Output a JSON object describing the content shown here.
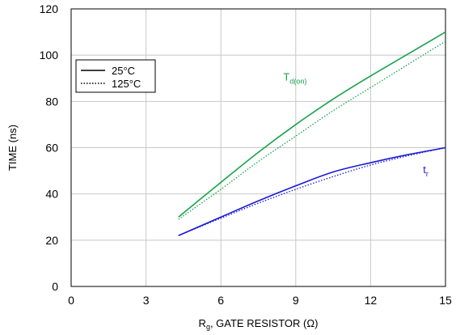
{
  "chart_data": {
    "type": "line",
    "xlabel_main": "R",
    "xlabel_sub": "g",
    "xlabel_rest": ", GATE RESISTOR (Ω)",
    "ylabel": "TIME (ns)",
    "xlim": [
      0,
      15
    ],
    "ylim": [
      0,
      120
    ],
    "x_ticks": [
      0,
      3,
      6,
      9,
      12,
      15
    ],
    "y_ticks": [
      0,
      20,
      40,
      60,
      80,
      100,
      120
    ],
    "grid": true,
    "legend": {
      "placement": "top-left",
      "entries": [
        {
          "label": "25°C",
          "style": "solid"
        },
        {
          "label": "125°C",
          "style": "dotted"
        }
      ]
    },
    "annotations": [
      {
        "main": "T",
        "sub": "d(on)",
        "color": "#17a34a",
        "x": 8.5,
        "y": 89
      },
      {
        "main": "t",
        "sub": "r",
        "color": "#1a1ad6",
        "x": 14.1,
        "y": 49
      }
    ],
    "series": [
      {
        "group": "Td(on)",
        "temp": "25°C",
        "style": "solid",
        "color": "#17a34a",
        "x": [
          4.3,
          6,
          7.5,
          9,
          10.5,
          12,
          13.5,
          15
        ],
        "y": [
          30,
          45,
          58,
          70,
          81,
          91,
          100.5,
          110
        ]
      },
      {
        "group": "Td(on)",
        "temp": "125°C",
        "style": "dotted",
        "color": "#17a34a",
        "x": [
          4.3,
          6,
          7.5,
          9,
          10.5,
          12,
          13.5,
          15
        ],
        "y": [
          29,
          42,
          54,
          65,
          76,
          86,
          96,
          106
        ]
      },
      {
        "group": "tr",
        "temp": "25°C",
        "style": "solid",
        "color": "#1a1ad6",
        "x": [
          4.3,
          6,
          7.5,
          9,
          10.5,
          12,
          13.5,
          15
        ],
        "y": [
          22,
          30,
          37,
          43.5,
          49.5,
          53.5,
          57,
          60
        ]
      },
      {
        "group": "tr",
        "temp": "125°C",
        "style": "dotted",
        "color": "#1a1ad6",
        "x": [
          4.3,
          6,
          7.5,
          9,
          10.5,
          12,
          13.5,
          15
        ],
        "y": [
          22,
          29.5,
          36,
          42,
          47.5,
          52.5,
          56.5,
          60
        ]
      }
    ]
  }
}
